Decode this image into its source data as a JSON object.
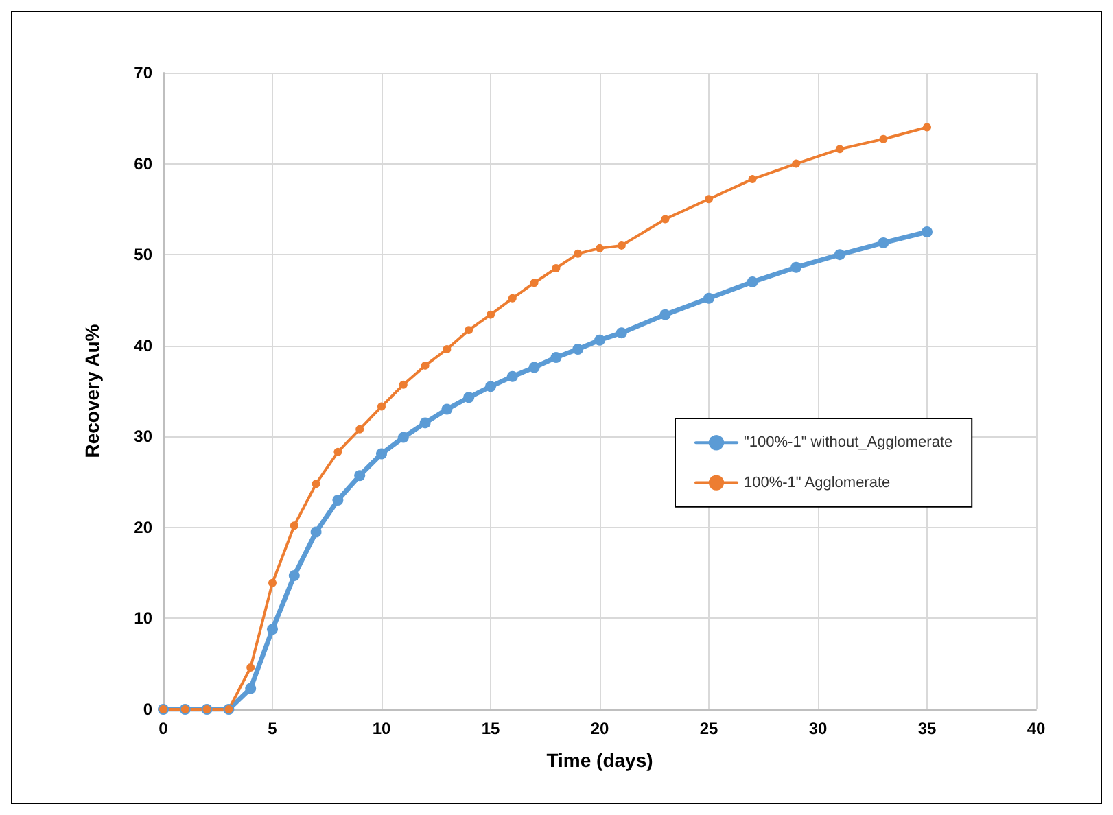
{
  "chart_data": {
    "type": "line",
    "xlabel": "Time (days)",
    "ylabel": "Recovery Au%",
    "x": [
      0,
      1,
      2,
      3,
      4,
      5,
      6,
      7,
      8,
      9,
      10,
      11,
      12,
      13,
      14,
      15,
      16,
      17,
      18,
      19,
      20,
      21,
      23,
      25,
      27,
      29,
      31,
      33,
      35
    ],
    "series": [
      {
        "name": "\"100%-1\" without_Agglomerate",
        "color": "#5b9bd5",
        "values": [
          0,
          0,
          0,
          0,
          2.3,
          8.8,
          14.7,
          19.5,
          23.0,
          25.7,
          28.1,
          29.9,
          31.5,
          33.0,
          34.3,
          35.5,
          36.6,
          37.6,
          38.7,
          39.6,
          40.6,
          41.4,
          43.4,
          45.2,
          47.0,
          48.6,
          50.0,
          51.3,
          52.5
        ]
      },
      {
        "name": "100%-1\" Agglomerate",
        "color": "#ed7d31",
        "values": [
          0,
          0,
          0,
          0,
          4.6,
          13.9,
          20.2,
          24.8,
          28.3,
          30.8,
          33.3,
          35.7,
          37.8,
          39.6,
          41.7,
          43.4,
          45.2,
          46.9,
          48.5,
          50.1,
          50.7,
          51.0,
          53.9,
          56.1,
          58.3,
          60.0,
          61.6,
          62.7,
          64.0
        ]
      }
    ],
    "xlim": [
      0,
      40
    ],
    "xticks": [
      0,
      5,
      10,
      15,
      20,
      25,
      30,
      35,
      40
    ],
    "ylim": [
      0,
      70
    ],
    "yticks": [
      0,
      10,
      20,
      30,
      40,
      50,
      60,
      70
    ],
    "grid": true,
    "legend": "right",
    "marker": "circle",
    "line_style": "solid"
  }
}
